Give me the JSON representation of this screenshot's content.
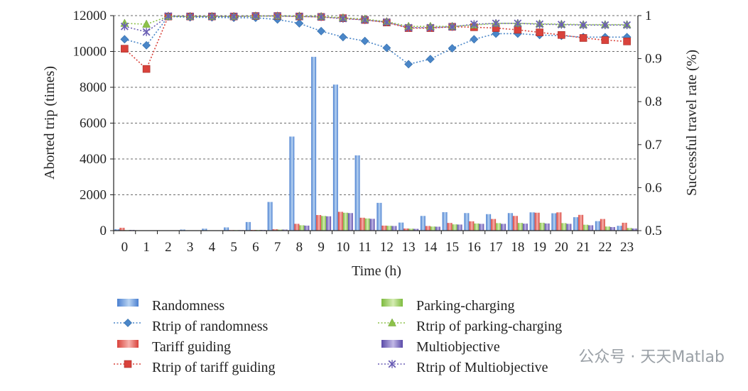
{
  "chart_data": {
    "type": "bar",
    "title": "",
    "xlabel": "Time (h)",
    "ylabel": "Aborted trip (times)",
    "y2label": "Successful travel rate (%)",
    "ylim": [
      0,
      12000
    ],
    "y2lim": [
      0.5,
      1
    ],
    "yticks": [
      "0",
      "2000",
      "4000",
      "6000",
      "8000",
      "10000",
      "12000"
    ],
    "y2ticks": [
      "0.5",
      "0.6",
      "0.7",
      "0.8",
      "0.9",
      "1"
    ],
    "categories": [
      "0",
      "1",
      "2",
      "3",
      "4",
      "5",
      "6",
      "7",
      "8",
      "9",
      "10",
      "11",
      "12",
      "13",
      "14",
      "15",
      "16",
      "17",
      "18",
      "19",
      "20",
      "21",
      "22",
      "23"
    ],
    "bar_series": [
      {
        "name": "Randomness",
        "color": "#4a7fd0",
        "light": "#b9d4f2",
        "values": [
          80,
          10,
          0,
          60,
          110,
          180,
          480,
          1600,
          5250,
          9700,
          8150,
          4200,
          1550,
          450,
          820,
          1030,
          980,
          920,
          980,
          1020,
          970,
          750,
          530,
          270
        ]
      },
      {
        "name": "Tariff guiding",
        "color": "#d9423b",
        "light": "#f6b3ae",
        "values": [
          160,
          10,
          0,
          10,
          20,
          30,
          40,
          80,
          380,
          870,
          1050,
          720,
          280,
          120,
          260,
          430,
          520,
          650,
          820,
          1000,
          1020,
          880,
          650,
          440
        ]
      },
      {
        "name": "Parking-charging",
        "color": "#7dbb3e",
        "light": "#d5ecb3",
        "values": [
          30,
          5,
          0,
          10,
          20,
          30,
          40,
          60,
          300,
          820,
          1000,
          680,
          270,
          110,
          230,
          350,
          400,
          420,
          430,
          440,
          420,
          330,
          230,
          150
        ]
      },
      {
        "name": "Multiobjective",
        "color": "#5a4aa8",
        "light": "#c2b9e6",
        "values": [
          40,
          5,
          0,
          10,
          20,
          30,
          40,
          60,
          280,
          800,
          980,
          660,
          260,
          100,
          220,
          340,
          380,
          380,
          390,
          400,
          380,
          300,
          200,
          120
        ]
      }
    ],
    "line_series": [
      {
        "name": "Rtrip of randomness",
        "color": "#4a86c8",
        "marker": "diamond",
        "values": [
          0.945,
          0.931,
          0.998,
          0.996,
          0.996,
          0.995,
          0.995,
          0.991,
          0.982,
          0.964,
          0.95,
          0.941,
          0.925,
          0.887,
          0.899,
          0.924,
          0.945,
          0.958,
          0.958,
          0.955,
          0.953,
          0.95,
          0.95,
          0.95
        ]
      },
      {
        "name": "Rtrip of tariff guiding",
        "color": "#d9423b",
        "marker": "square",
        "values": [
          0.923,
          0.876,
          0.998,
          0.998,
          0.998,
          0.998,
          0.999,
          0.999,
          0.998,
          0.997,
          0.994,
          0.99,
          0.984,
          0.971,
          0.971,
          0.974,
          0.973,
          0.971,
          0.967,
          0.961,
          0.955,
          0.948,
          0.943,
          0.94
        ]
      },
      {
        "name": "Rtrip of parking-charging",
        "color": "#8dc24a",
        "marker": "triangle",
        "values": [
          0.982,
          0.98,
          0.998,
          0.998,
          0.998,
          0.998,
          0.999,
          0.999,
          0.999,
          0.998,
          0.995,
          0.992,
          0.986,
          0.975,
          0.975,
          0.975,
          0.978,
          0.982,
          0.982,
          0.981,
          0.98,
          0.979,
          0.979,
          0.979
        ]
      },
      {
        "name": "Rtrip of Multiobjective",
        "color": "#6b5fb5",
        "marker": "x",
        "values": [
          0.975,
          0.962,
          0.999,
          0.998,
          0.998,
          0.998,
          0.999,
          0.999,
          0.998,
          0.997,
          0.993,
          0.99,
          0.985,
          0.972,
          0.972,
          0.974,
          0.98,
          0.982,
          0.982,
          0.98,
          0.979,
          0.978,
          0.978,
          0.978
        ]
      }
    ],
    "legend": {
      "placement": "bottom",
      "items": [
        "Randomness",
        "Rtrip of randomness",
        "Tariff guiding",
        "Rtrip of tariff guiding",
        "Parking-charging",
        "Rtrip of parking-charging",
        "Multiobjective",
        "Rtrip of Multiobjective"
      ]
    },
    "grid": "horizontal dashed"
  },
  "watermark": {
    "text": "公众号 · 天天Matlab"
  }
}
